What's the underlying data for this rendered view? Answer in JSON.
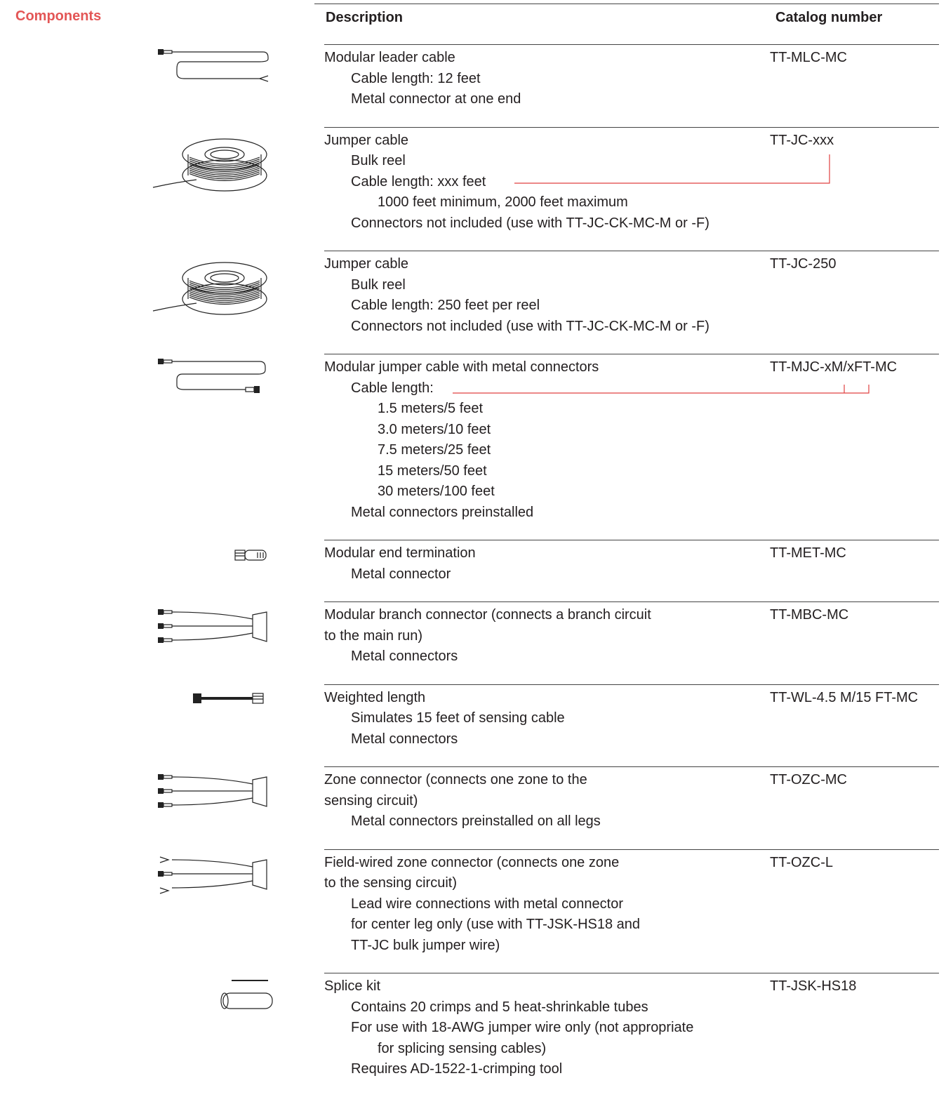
{
  "section": "Components",
  "header": {
    "description": "Description",
    "catalog": "Catalog number"
  },
  "rows": [
    {
      "title": [
        "Modular leader cable"
      ],
      "details": [
        "Cable length: 12 feet",
        "Metal connector at one end"
      ],
      "catalog": "TT-MLC-MC"
    },
    {
      "title": [
        "Jumper cable"
      ],
      "details": [
        "Bulk reel",
        {
          "text": "Cable length: xxx feet",
          "items": [
            "1000 feet minimum, 2000 feet maximum"
          ]
        },
        "Connectors not included (use with TT-JC-CK-MC-M or -F)"
      ],
      "catalog": "TT-JC-xxx"
    },
    {
      "title": [
        "Jumper cable"
      ],
      "details": [
        "Bulk reel",
        "Cable length: 250 feet per reel",
        "Connectors not included (use with TT-JC-CK-MC-M or -F)"
      ],
      "catalog": "TT-JC-250"
    },
    {
      "title": [
        "Modular jumper cable with metal connectors"
      ],
      "details": [
        {
          "text": "Cable length:",
          "items": [
            "1.5 meters/5 feet",
            "3.0 meters/10 feet",
            "7.5 meters/25 feet",
            "15 meters/50 feet",
            "30 meters/100 feet"
          ]
        },
        "Metal connectors preinstalled"
      ],
      "catalog": "TT-MJC-xM/xFT-MC"
    },
    {
      "title": [
        "Modular end termination"
      ],
      "details": [
        "Metal connector"
      ],
      "catalog": "TT-MET-MC"
    },
    {
      "title": [
        "Modular branch connector (connects a branch circuit",
        "to the main run)"
      ],
      "details": [
        "Metal connectors"
      ],
      "catalog": "TT-MBC-MC"
    },
    {
      "title": [
        "Weighted length"
      ],
      "details": [
        "Simulates 15 feet of sensing cable",
        "Metal connectors"
      ],
      "catalog": "TT-WL-4.5 M/15 FT-MC"
    },
    {
      "title": [
        "Zone connector (connects one zone to the",
        "sensing circuit)"
      ],
      "details": [
        "Metal connectors preinstalled on all legs"
      ],
      "catalog": "TT-OZC-MC"
    },
    {
      "title": [
        "Field-wired zone connector (connects one zone",
        "to the sensing circuit)"
      ],
      "details": [
        "Lead wire connections with metal connector",
        "for center leg only (use with TT-JSK-HS18 and",
        "TT-JC bulk jumper wire)"
      ],
      "catalog": "TT-OZC-L"
    },
    {
      "title": [
        "Splice kit"
      ],
      "details": [
        "Contains 20 crimps and 5 heat-shrinkable tubes",
        {
          "text": "For use with 18-AWG jumper wire only (not appropriate",
          "items": [
            "for splicing sensing cables)"
          ]
        },
        "Requires AD-1522-1-crimping tool"
      ],
      "catalog": "TT-JSK-HS18"
    }
  ]
}
